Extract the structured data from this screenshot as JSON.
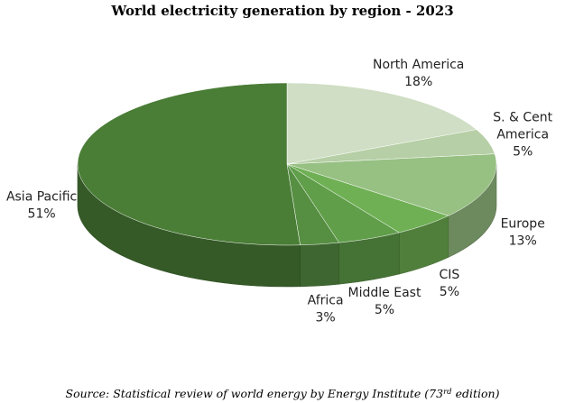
{
  "chart_data": {
    "type": "pie",
    "title": "World electricity generation by region - 2023",
    "unit": "%",
    "slices": [
      {
        "label": "North America",
        "label_lines": [
          "North America"
        ],
        "value": 18,
        "value_text": "18%",
        "color": "#cfdec4"
      },
      {
        "label": "S. & Cent America",
        "label_lines": [
          "S. & Cent",
          "America"
        ],
        "value": 5,
        "value_text": "5%",
        "color": "#b6cfa6"
      },
      {
        "label": "Europe",
        "label_lines": [
          "Europe"
        ],
        "value": 13,
        "value_text": "13%",
        "color": "#97c083"
      },
      {
        "label": "CIS",
        "label_lines": [
          "CIS"
        ],
        "value": 5,
        "value_text": "5%",
        "color": "#6fb054"
      },
      {
        "label": "Middle East",
        "label_lines": [
          "Middle East"
        ],
        "value": 5,
        "value_text": "5%",
        "color": "#609e4a"
      },
      {
        "label": "Africa",
        "label_lines": [
          "Africa"
        ],
        "value": 3,
        "value_text": "3%",
        "color": "#568e42"
      },
      {
        "label": "Asia Pacific",
        "label_lines": [
          "Asia Pacific"
        ],
        "value": 51,
        "value_text": "51%",
        "color": "#4a7d36"
      }
    ],
    "legend": "none",
    "style": "3d-pie"
  },
  "source": {
    "before": "Source: Statistical review of world energy by Energy Institute (73",
    "sup": "rd",
    "after": " edition)"
  }
}
